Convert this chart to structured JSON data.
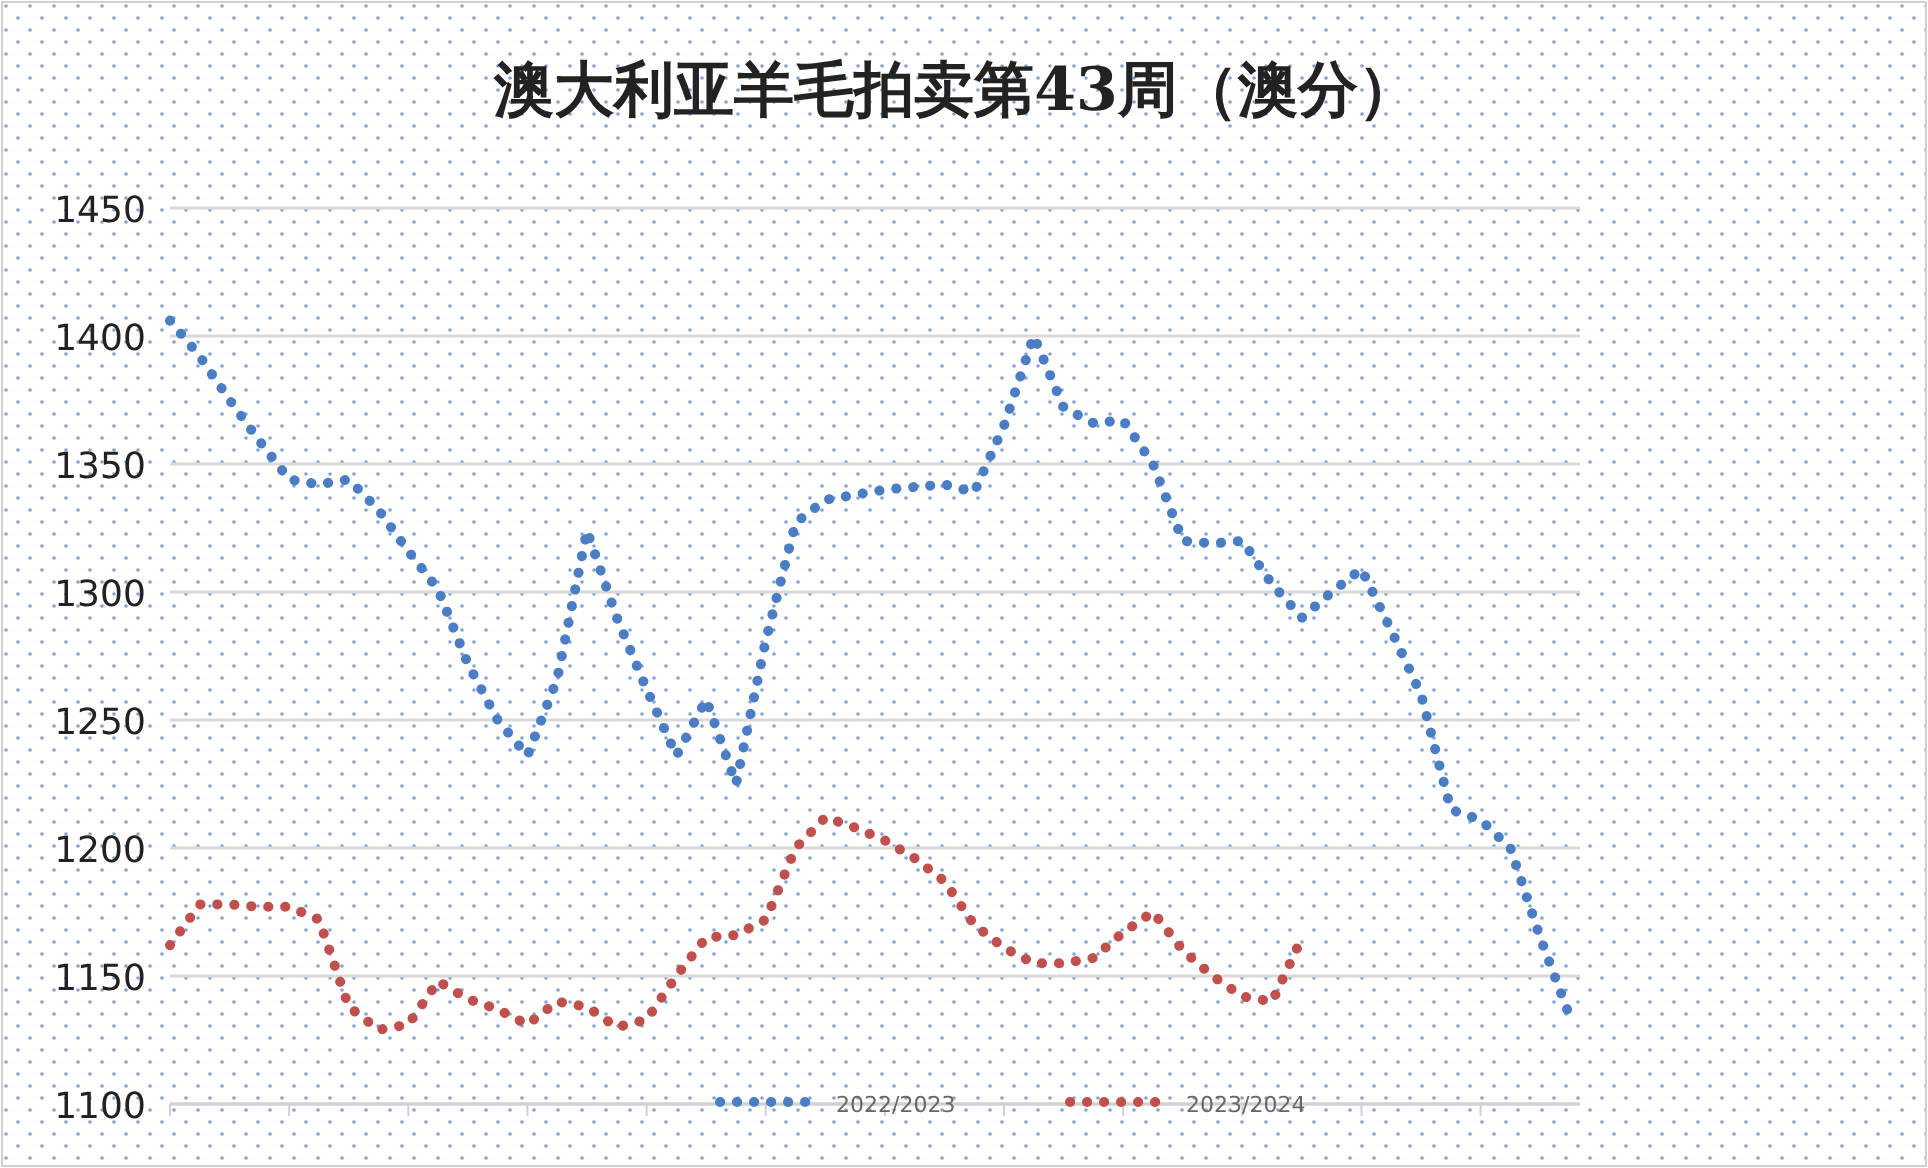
{
  "chart_data": {
    "type": "line",
    "title": "澳大利亚羊毛拍卖第43周（澳分）",
    "categories": [
      null,
      null,
      null,
      null,
      null,
      null,
      null,
      null,
      null,
      null,
      null,
      null,
      null,
      null,
      null,
      null,
      null,
      null,
      null,
      null,
      null,
      null,
      null,
      null,
      null,
      null,
      null,
      null,
      null,
      null,
      null,
      null,
      null,
      null,
      null,
      null,
      null,
      null,
      null,
      null,
      null,
      null,
      null,
      null,
      null,
      null,
      null,
      null
    ],
    "series": [
      {
        "name": "2022/2023",
        "color": "#4a7dc4",
        "values": [
          1406,
          1392,
          1375,
          1359,
          1344,
          1342,
          1344,
          1332,
          1316,
          1301,
          1272,
          1250,
          1236,
          1266,
          1324,
          1290,
          1262,
          1236,
          1258,
          1225,
          1281,
          1327,
          1336,
          1338,
          1340,
          1341,
          1342,
          1339,
          1365,
          1400,
          1372,
          1366,
          1367,
          1350,
          1320,
          1319,
          1320,
          1303,
          1290,
          1300,
          1309,
          1285,
          1260,
          1215,
          1211,
          1200,
          1165,
          1134
        ]
      },
      {
        "name": "2023/2024",
        "color": "#c0504d",
        "values": [
          1162,
          1178,
          1178,
          1177,
          1177,
          1172,
          1138,
          1129,
          1131,
          1148,
          1141,
          1137,
          1131,
          1140,
          1138,
          1130,
          1133,
          1150,
          1165,
          1166,
          1172,
          1200,
          1212,
          1208,
          1203,
          1196,
          1187,
          1170,
          1161,
          1155,
          1155,
          1157,
          1167,
          1175,
          1160,
          1150,
          1142,
          1140,
          1165,
          null,
          null,
          null,
          null,
          null,
          null,
          null,
          null,
          null
        ]
      }
    ],
    "ylim": [
      1100,
      1450
    ],
    "yticks": [
      1100,
      1150,
      1200,
      1250,
      1300,
      1350,
      1400,
      1450
    ],
    "grid": "y",
    "legend": "bottom",
    "line_style": "dotted"
  }
}
